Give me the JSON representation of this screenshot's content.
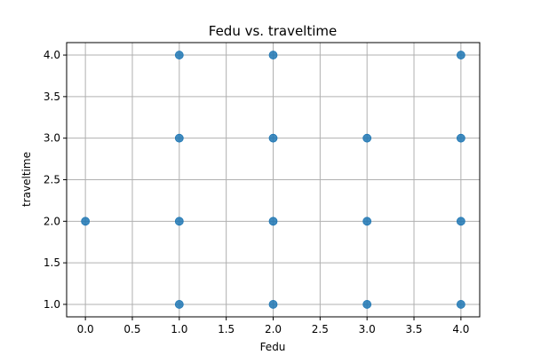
{
  "chart_data": {
    "type": "scatter",
    "title": "Fedu vs. traveltime",
    "xlabel": "Fedu",
    "ylabel": "traveltime",
    "xlim": [
      -0.2,
      4.2
    ],
    "ylim": [
      0.85,
      4.15
    ],
    "xticks": [
      0.0,
      0.5,
      1.0,
      1.5,
      2.0,
      2.5,
      3.0,
      3.5,
      4.0
    ],
    "xtick_labels": [
      "0.0",
      "0.5",
      "1.0",
      "1.5",
      "2.0",
      "2.5",
      "3.0",
      "3.5",
      "4.0"
    ],
    "yticks": [
      1.0,
      1.5,
      2.0,
      2.5,
      3.0,
      3.5,
      4.0
    ],
    "ytick_labels": [
      "1.0",
      "1.5",
      "2.0",
      "2.5",
      "3.0",
      "3.5",
      "4.0"
    ],
    "grid": true,
    "marker_color": "#1f77b4",
    "points": [
      {
        "x": 0,
        "y": 2
      },
      {
        "x": 1,
        "y": 1
      },
      {
        "x": 1,
        "y": 2
      },
      {
        "x": 1,
        "y": 3
      },
      {
        "x": 1,
        "y": 4
      },
      {
        "x": 2,
        "y": 1
      },
      {
        "x": 2,
        "y": 2
      },
      {
        "x": 2,
        "y": 3
      },
      {
        "x": 2,
        "y": 4
      },
      {
        "x": 3,
        "y": 1
      },
      {
        "x": 3,
        "y": 2
      },
      {
        "x": 3,
        "y": 3
      },
      {
        "x": 4,
        "y": 1
      },
      {
        "x": 4,
        "y": 2
      },
      {
        "x": 4,
        "y": 3
      },
      {
        "x": 4,
        "y": 4
      }
    ]
  }
}
